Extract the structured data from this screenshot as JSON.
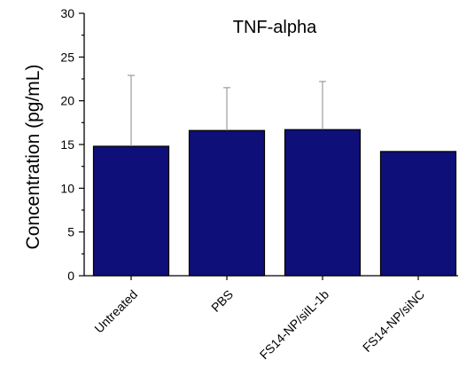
{
  "chart_data": {
    "type": "bar",
    "title": "TNF-alpha",
    "ylabel": "Concentration (pg/mL)",
    "xlabel": "",
    "categories": [
      "Untreated",
      "PBS",
      "FS14-NP/siIL-1b",
      "FS14-NP/siNC"
    ],
    "values": [
      14.8,
      16.6,
      16.7,
      14.2
    ],
    "error_upper": [
      22.9,
      21.5,
      22.2,
      14.2
    ],
    "ylim": [
      0,
      30
    ],
    "yticks": [
      0,
      5,
      10,
      15,
      20,
      25,
      30
    ],
    "ytick_labels": [
      "0",
      "5",
      "10",
      "15",
      "20",
      "25",
      "30"
    ],
    "bar_color": "#0f0f7a",
    "error_color": "#8a8a8a",
    "grid": false
  }
}
